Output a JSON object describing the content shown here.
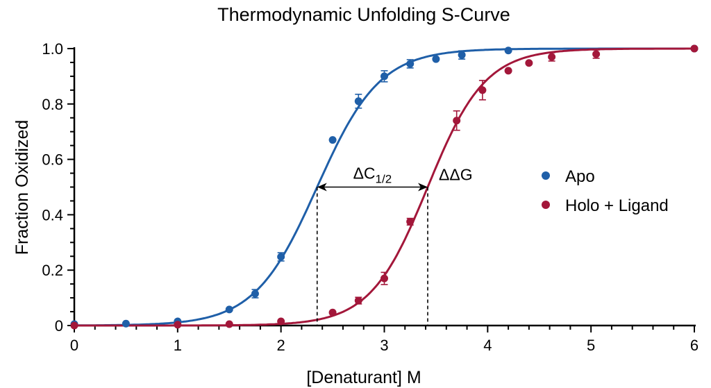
{
  "chart_data": {
    "type": "scatter",
    "title": "Thermodynamic Unfolding S-Curve",
    "xlabel": "[Denaturant] M",
    "ylabel": "Fraction Oxidized",
    "xlim": [
      0,
      6
    ],
    "ylim": [
      0,
      1.0
    ],
    "x_ticks": [
      "0",
      "1",
      "2",
      "3",
      "4",
      "5",
      "6"
    ],
    "y_ticks": [
      "0",
      "0.2",
      "0.4",
      "0.6",
      "0.8",
      "1.0"
    ],
    "grid": false,
    "legend_position": "right",
    "series": [
      {
        "name": "Apo",
        "color": "#1f5fa8",
        "x": [
          0,
          0.5,
          1.0,
          1.5,
          1.75,
          2.0,
          2.5,
          2.75,
          3.0,
          3.25,
          3.5,
          3.75,
          4.2,
          6.0
        ],
        "y": [
          0.005,
          0.007,
          0.015,
          0.058,
          0.115,
          0.248,
          0.67,
          0.81,
          0.9,
          0.945,
          0.962,
          0.977,
          0.993,
          1.0
        ],
        "err": [
          0,
          0,
          0,
          0,
          0.015,
          0.015,
          0,
          0.025,
          0.02,
          0.015,
          0,
          0.015,
          0,
          0
        ],
        "fit": {
          "midpoint": 2.35,
          "slope": 3.3
        }
      },
      {
        "name": "Holo + Ligand",
        "color": "#a3173a",
        "x": [
          0,
          1.0,
          1.5,
          2.0,
          2.5,
          2.75,
          3.0,
          3.25,
          3.7,
          3.95,
          4.2,
          4.4,
          4.62,
          5.05,
          6.0
        ],
        "y": [
          0.0,
          0.003,
          0.005,
          0.015,
          0.047,
          0.09,
          0.17,
          0.375,
          0.74,
          0.85,
          0.92,
          0.948,
          0.97,
          0.98,
          1.0
        ],
        "err": [
          0,
          0,
          0,
          0,
          0,
          0.012,
          0.022,
          0.012,
          0.035,
          0.035,
          0,
          0,
          0.015,
          0.015,
          0
        ],
        "fit": {
          "midpoint": 3.42,
          "slope": 3.6
        }
      }
    ],
    "annotations": {
      "delta_c_main": "ΔC",
      "delta_c_sub": "1/2",
      "ddg": "ΔΔG"
    }
  }
}
